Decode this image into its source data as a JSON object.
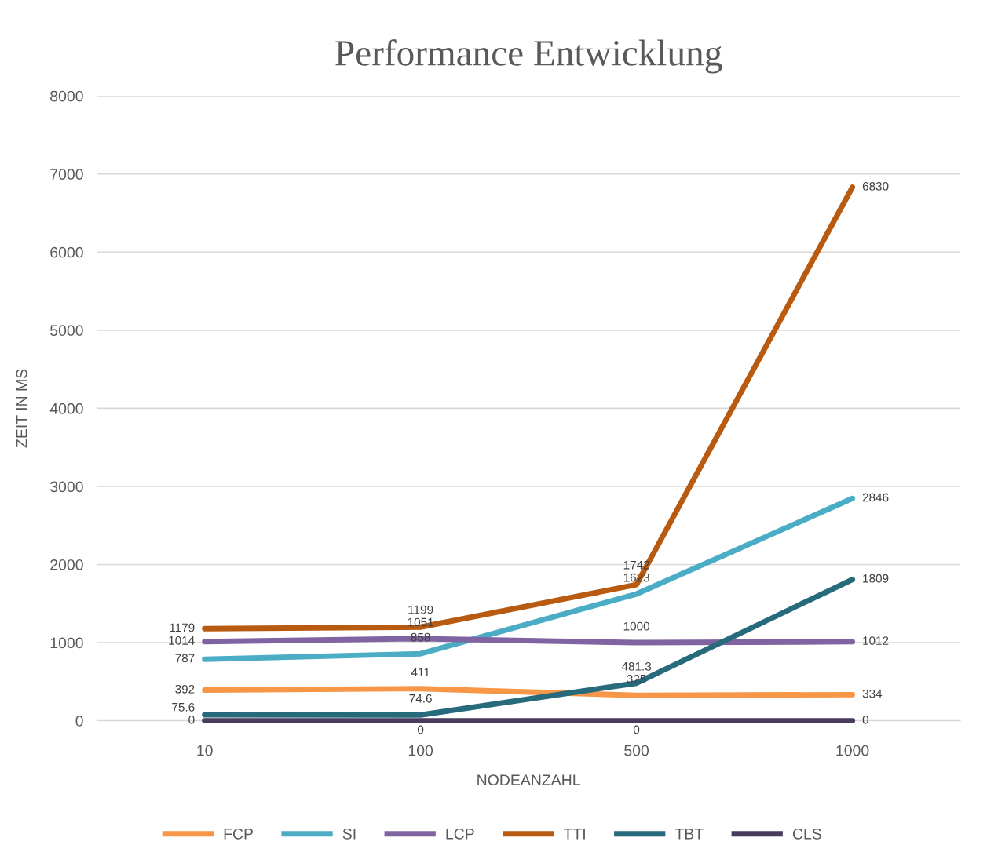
{
  "chart_data": {
    "type": "line",
    "title": "Performance Entwicklung",
    "xlabel": "NODEANZAHL",
    "ylabel": "ZEIT IN MS",
    "categories": [
      "10",
      "100",
      "500",
      "1000"
    ],
    "series": [
      {
        "name": "FCP",
        "color": "#f79646",
        "values": [
          392,
          411,
          325,
          334
        ]
      },
      {
        "name": "SI",
        "color": "#4bacc6",
        "values": [
          787,
          858,
          1623,
          2846
        ]
      },
      {
        "name": "LCP",
        "color": "#8064a2",
        "values": [
          1014,
          1051,
          1000,
          1012
        ]
      },
      {
        "name": "TTI",
        "color": "#b85a10",
        "values": [
          1179,
          1199,
          1742,
          6830
        ]
      },
      {
        "name": "TBT",
        "color": "#276a7c",
        "values": [
          75.6,
          74.6,
          481.3,
          1809
        ]
      },
      {
        "name": "CLS",
        "color": "#4a3a5e",
        "values": [
          0,
          0,
          0,
          0
        ]
      }
    ],
    "ylim": [
      0,
      8000
    ],
    "yticks": [
      0,
      1000,
      2000,
      3000,
      4000,
      5000,
      6000,
      7000,
      8000
    ],
    "grid": "y",
    "legend": "bottom",
    "data_labels": true,
    "marker": "none",
    "line_style": "solid"
  }
}
